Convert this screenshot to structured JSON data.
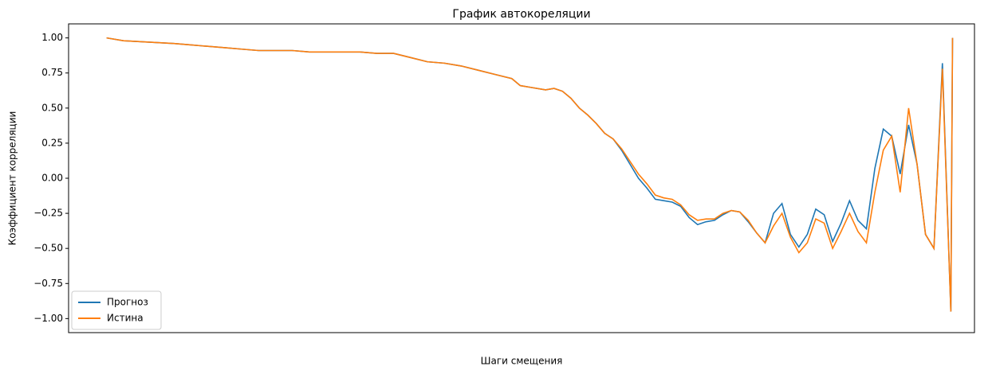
{
  "chart_data": {
    "type": "line",
    "title": "График автокореляции",
    "xlabel": "Шаги смещения",
    "ylabel": "Коэффициент корреляции",
    "x": [
      0,
      2,
      5,
      8,
      10,
      12,
      14,
      16,
      18,
      20,
      22,
      24,
      26,
      28,
      30,
      32,
      34,
      36,
      38,
      40,
      42,
      44,
      46,
      48,
      49,
      50,
      52,
      53,
      54,
      55,
      56,
      57,
      58,
      59,
      60,
      61,
      62,
      63,
      64,
      65,
      66,
      67,
      68,
      69,
      70,
      71,
      72,
      73,
      74,
      75,
      76,
      77,
      78,
      79,
      80,
      81,
      82,
      83,
      84,
      85,
      86,
      87,
      88,
      89,
      90,
      91,
      92,
      93,
      94,
      95,
      96,
      97,
      98,
      99,
      100,
      100.2
    ],
    "series": [
      {
        "name": "Прогноз",
        "color": "#1f77b4",
        "values": [
          1.0,
          0.98,
          0.97,
          0.96,
          0.95,
          0.94,
          0.93,
          0.92,
          0.91,
          0.91,
          0.91,
          0.9,
          0.9,
          0.9,
          0.9,
          0.89,
          0.89,
          0.86,
          0.83,
          0.82,
          0.8,
          0.77,
          0.74,
          0.71,
          0.66,
          0.65,
          0.63,
          0.64,
          0.62,
          0.57,
          0.5,
          0.45,
          0.39,
          0.32,
          0.28,
          0.2,
          0.1,
          0.0,
          -0.07,
          -0.15,
          -0.16,
          -0.17,
          -0.2,
          -0.28,
          -0.33,
          -0.31,
          -0.3,
          -0.26,
          -0.23,
          -0.24,
          -0.31,
          -0.39,
          -0.46,
          -0.25,
          -0.18,
          -0.4,
          -0.49,
          -0.4,
          -0.22,
          -0.26,
          -0.45,
          -0.32,
          -0.16,
          -0.3,
          -0.36,
          0.07,
          0.35,
          0.3,
          0.03,
          0.38,
          0.1,
          -0.4,
          -0.5,
          0.82,
          -0.95,
          1.0
        ]
      },
      {
        "name": "Истина",
        "color": "#ff7f0e",
        "values": [
          1.0,
          0.98,
          0.97,
          0.96,
          0.95,
          0.94,
          0.93,
          0.92,
          0.91,
          0.91,
          0.91,
          0.9,
          0.9,
          0.9,
          0.9,
          0.89,
          0.89,
          0.86,
          0.83,
          0.82,
          0.8,
          0.77,
          0.74,
          0.71,
          0.66,
          0.65,
          0.63,
          0.64,
          0.62,
          0.57,
          0.5,
          0.45,
          0.39,
          0.32,
          0.28,
          0.21,
          0.12,
          0.03,
          -0.04,
          -0.12,
          -0.14,
          -0.15,
          -0.19,
          -0.26,
          -0.3,
          -0.29,
          -0.29,
          -0.25,
          -0.23,
          -0.24,
          -0.3,
          -0.39,
          -0.46,
          -0.34,
          -0.25,
          -0.42,
          -0.53,
          -0.46,
          -0.29,
          -0.32,
          -0.5,
          -0.38,
          -0.25,
          -0.38,
          -0.46,
          -0.1,
          0.2,
          0.3,
          -0.1,
          0.5,
          0.1,
          -0.4,
          -0.5,
          0.78,
          -0.95,
          1.0
        ]
      }
    ],
    "xlim": [
      -4.5,
      102.8
    ],
    "ylim": [
      -1.1,
      1.1
    ],
    "yticks": [
      {
        "value": -1,
        "label": "−1.00"
      },
      {
        "value": -0.75,
        "label": "−0.75"
      },
      {
        "value": -0.5,
        "label": "−0.50"
      },
      {
        "value": -0.25,
        "label": "−0.25"
      },
      {
        "value": 0,
        "label": "0.00"
      },
      {
        "value": 0.25,
        "label": "0.25"
      },
      {
        "value": 0.5,
        "label": "0.50"
      },
      {
        "value": 0.75,
        "label": "0.75"
      },
      {
        "value": 1,
        "label": "1.00"
      }
    ],
    "legend": "lower left",
    "grid": false
  }
}
